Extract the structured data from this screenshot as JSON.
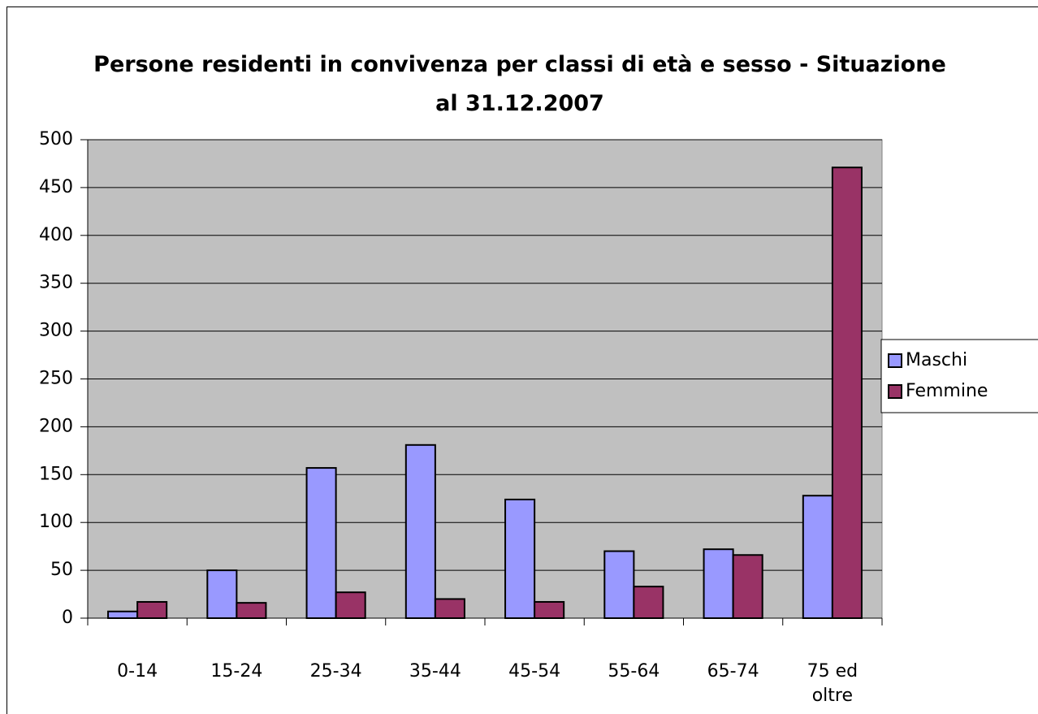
{
  "chart_data": {
    "type": "bar",
    "title": "Persone residenti in convivenza per classi di età e sesso - Situazione al 31.12.2007",
    "categories": [
      "0-14",
      "15-24",
      "25-34",
      "35-44",
      "45-54",
      "55-64",
      "65-74",
      "75 ed oltre"
    ],
    "series": [
      {
        "name": "Maschi",
        "color": "#9999ff",
        "values": [
          7,
          50,
          157,
          181,
          124,
          70,
          72,
          128
        ]
      },
      {
        "name": "Femmine",
        "color": "#993366",
        "values": [
          17,
          16,
          27,
          20,
          17,
          33,
          66,
          471
        ]
      }
    ],
    "ylim": [
      0,
      500
    ],
    "yticks": [
      0,
      50,
      100,
      150,
      200,
      250,
      300,
      350,
      400,
      450,
      500
    ],
    "grid": true,
    "plot_background": "#c0c0c0",
    "legend": "right"
  }
}
